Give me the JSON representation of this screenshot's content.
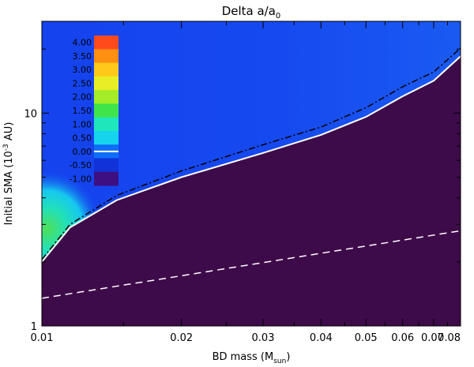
{
  "chart_data": {
    "type": "heatmap",
    "title": "Delta a/a",
    "title_subscript": "0",
    "xlabel": "BD mass (M",
    "xlabel_subscript": "sun",
    "xlabel_suffix": ")",
    "ylabel": "Initial SMA (10",
    "ylabel_superscript": "-3",
    "ylabel_suffix": " AU)",
    "x_scale": "log",
    "y_scale": "log",
    "xlim": [
      0.01,
      0.08
    ],
    "ylim": [
      1,
      27
    ],
    "x_ticks": [
      {
        "value": 0.01,
        "label": "0.01"
      },
      {
        "value": 0.02,
        "label": "0.02"
      },
      {
        "value": 0.03,
        "label": "0.03"
      },
      {
        "value": 0.04,
        "label": "0.04"
      },
      {
        "value": 0.05,
        "label": "0.05"
      },
      {
        "value": 0.06,
        "label": "0.06"
      },
      {
        "value": 0.07,
        "label": "0.07"
      },
      {
        "value": 0.08,
        "label": "0.08"
      }
    ],
    "y_ticks": [
      {
        "value": 1,
        "label": "1"
      },
      {
        "value": 10,
        "label": "10"
      }
    ],
    "colorbar": {
      "levels": [
        {
          "label": "4.00",
          "color": "#ff4a1c"
        },
        {
          "label": "3.50",
          "color": "#ff8f10"
        },
        {
          "label": "3.00",
          "color": "#ffc81a"
        },
        {
          "label": "2.50",
          "color": "#e8ee25"
        },
        {
          "label": "2.00",
          "color": "#a4ec28"
        },
        {
          "label": "1.50",
          "color": "#3fe44a"
        },
        {
          "label": "1.00",
          "color": "#1fe6bb"
        },
        {
          "label": "0.50",
          "color": "#16d3ee"
        },
        {
          "label": "0.00",
          "color": "#0f6ef8"
        },
        {
          "label": "-0.50",
          "color": "#1032d8"
        },
        {
          "label": "-1.00",
          "color": "#3e0f80"
        }
      ],
      "zero_line_color": "#ffffff"
    },
    "colors": {
      "background_field": "#1543ee",
      "field_upper_right": "#1a5af2",
      "unstable_region": "#3e0b4a",
      "hot_spot": "#4ee05a",
      "dashdot_line": "#000000",
      "dashed_line": "#ffffff",
      "boundary_line": "#ffffff"
    },
    "series": [
      {
        "style": "boundary",
        "x": [
          0.01,
          0.0115,
          0.0145,
          0.02,
          0.03,
          0.04,
          0.05,
          0.06,
          0.07,
          0.08
        ],
        "y": [
          2.0,
          2.9,
          3.9,
          5.0,
          6.5,
          7.9,
          9.6,
          12.0,
          14.2,
          18.5
        ]
      },
      {
        "style": "dashdot",
        "x": [
          0.01,
          0.0115,
          0.0145,
          0.02,
          0.03,
          0.04,
          0.05,
          0.06,
          0.07,
          0.08
        ],
        "y": [
          2.05,
          3.0,
          4.1,
          5.35,
          7.1,
          8.6,
          10.6,
          13.3,
          15.6,
          20.2
        ]
      },
      {
        "style": "dashed",
        "x": [
          0.01,
          0.08
        ],
        "y": [
          1.35,
          2.8
        ]
      }
    ]
  }
}
